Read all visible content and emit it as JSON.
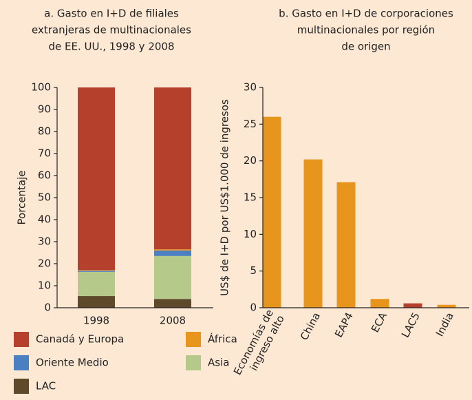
{
  "chart_data": [
    {
      "type": "stacked_bar",
      "title": [
        "a. Gasto en I+D de filiales",
        "extranjeras de multinacionales",
        "de EE. UU., 1998 y 2008"
      ],
      "y_label": "Porcentaje",
      "categories": [
        "1998",
        "2008"
      ],
      "series": [
        {
          "name": "LAC",
          "color": "#5e4a2a",
          "values": [
            5.3,
            4
          ]
        },
        {
          "name": "Asia",
          "color": "#b5c98b",
          "values": [
            11,
            19.5
          ]
        },
        {
          "name": "Oriente Medio",
          "color": "#4a7fc1",
          "values": [
            0.5,
            2.5
          ]
        },
        {
          "name": "África",
          "color": "#e8951e",
          "values": [
            0.3,
            0.5
          ]
        },
        {
          "name": "Canadá y Europa",
          "color": "#b5412d",
          "values": [
            82.9,
            73.5
          ]
        }
      ],
      "ylim": [
        0,
        100
      ],
      "yticks": [
        0,
        10,
        20,
        30,
        40,
        50,
        60,
        70,
        80,
        90,
        100
      ]
    },
    {
      "type": "bar",
      "title": [
        "b. Gasto en I+D de corporaciones",
        "multinacionales por región",
        "de origen"
      ],
      "y_label": "US$ de I+D por US$1.000 de ingresos",
      "categories": [
        "Economías de\ningreso alto",
        "China",
        "EAP4",
        "ECA",
        "LAC5",
        "India"
      ],
      "values": [
        26,
        20.2,
        17.1,
        1.2,
        0.6,
        0.4
      ],
      "colors": [
        "#e8951e",
        "#e8951e",
        "#e8951e",
        "#e8951e",
        "#b5412d",
        "#e8951e"
      ],
      "ylim": [
        0,
        30
      ],
      "yticks": [
        0,
        5,
        10,
        15,
        20,
        25,
        30
      ]
    }
  ]
}
